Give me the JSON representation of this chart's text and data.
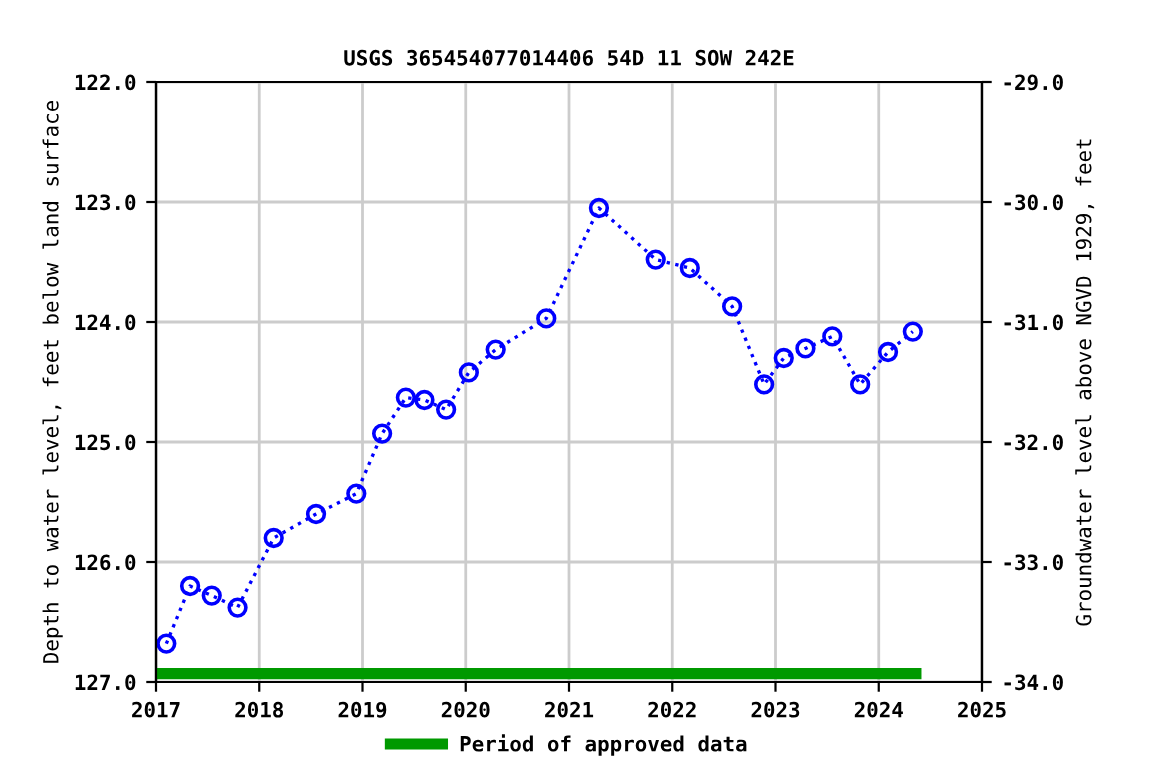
{
  "chart_data": {
    "type": "line",
    "title": "USGS 365454077014406 54D 11 SOW 242E",
    "xlabel": null,
    "ylabel": "Depth to water level, feet below land surface",
    "y2label": "Groundwater level above NGVD 1929, feet",
    "x": [
      2017.1,
      2017.33,
      2017.54,
      2017.79,
      2018.14,
      2018.55,
      2018.94,
      2019.19,
      2019.42,
      2019.6,
      2019.81,
      2020.03,
      2020.29,
      2020.78,
      2021.29,
      2021.84,
      2022.17,
      2022.58,
      2022.89,
      2023.08,
      2023.29,
      2023.55,
      2023.82,
      2024.09,
      2024.33
    ],
    "series": [
      {
        "color": "#0000ff",
        "marker": "circle",
        "line_style": "dotted",
        "values": [
          126.68,
          126.2,
          126.28,
          126.38,
          125.8,
          125.6,
          125.43,
          124.93,
          124.63,
          124.65,
          124.73,
          124.42,
          124.23,
          123.97,
          123.05,
          123.48,
          123.55,
          123.87,
          124.52,
          124.3,
          124.22,
          124.12,
          124.52,
          124.25,
          124.08
        ]
      },
      {
        "type": "line",
        "name": "Period of approved data",
        "color": "#009900",
        "marker": "none",
        "line_style": "solid",
        "x": [
          2017.05,
          2024.36
        ],
        "values": [
          126.93,
          126.93
        ]
      }
    ],
    "grid": true,
    "legend": "bottom",
    "xlim": [
      2017,
      2025
    ],
    "xticks": [
      2017,
      2018,
      2019,
      2020,
      2021,
      2022,
      2023,
      2024,
      2025
    ],
    "ylim": [
      127,
      122
    ],
    "yticks": [
      {
        "value": 122,
        "label": "122.0"
      },
      {
        "value": 123,
        "label": "123.0"
      },
      {
        "value": 124,
        "label": "124.0"
      },
      {
        "value": 125,
        "label": "125.0"
      },
      {
        "value": 126,
        "label": "126.0"
      },
      {
        "value": 127,
        "label": "127.0"
      }
    ],
    "y2lim": [
      -34,
      -29
    ],
    "y2ticks": [
      {
        "value": -29,
        "label": "-29.0"
      },
      {
        "value": -30,
        "label": "-30.0"
      },
      {
        "value": -31,
        "label": "-31.0"
      },
      {
        "value": -32,
        "label": "-32.0"
      },
      {
        "value": -33,
        "label": "-33.0"
      },
      {
        "value": -34,
        "label": "-34.0"
      }
    ]
  }
}
